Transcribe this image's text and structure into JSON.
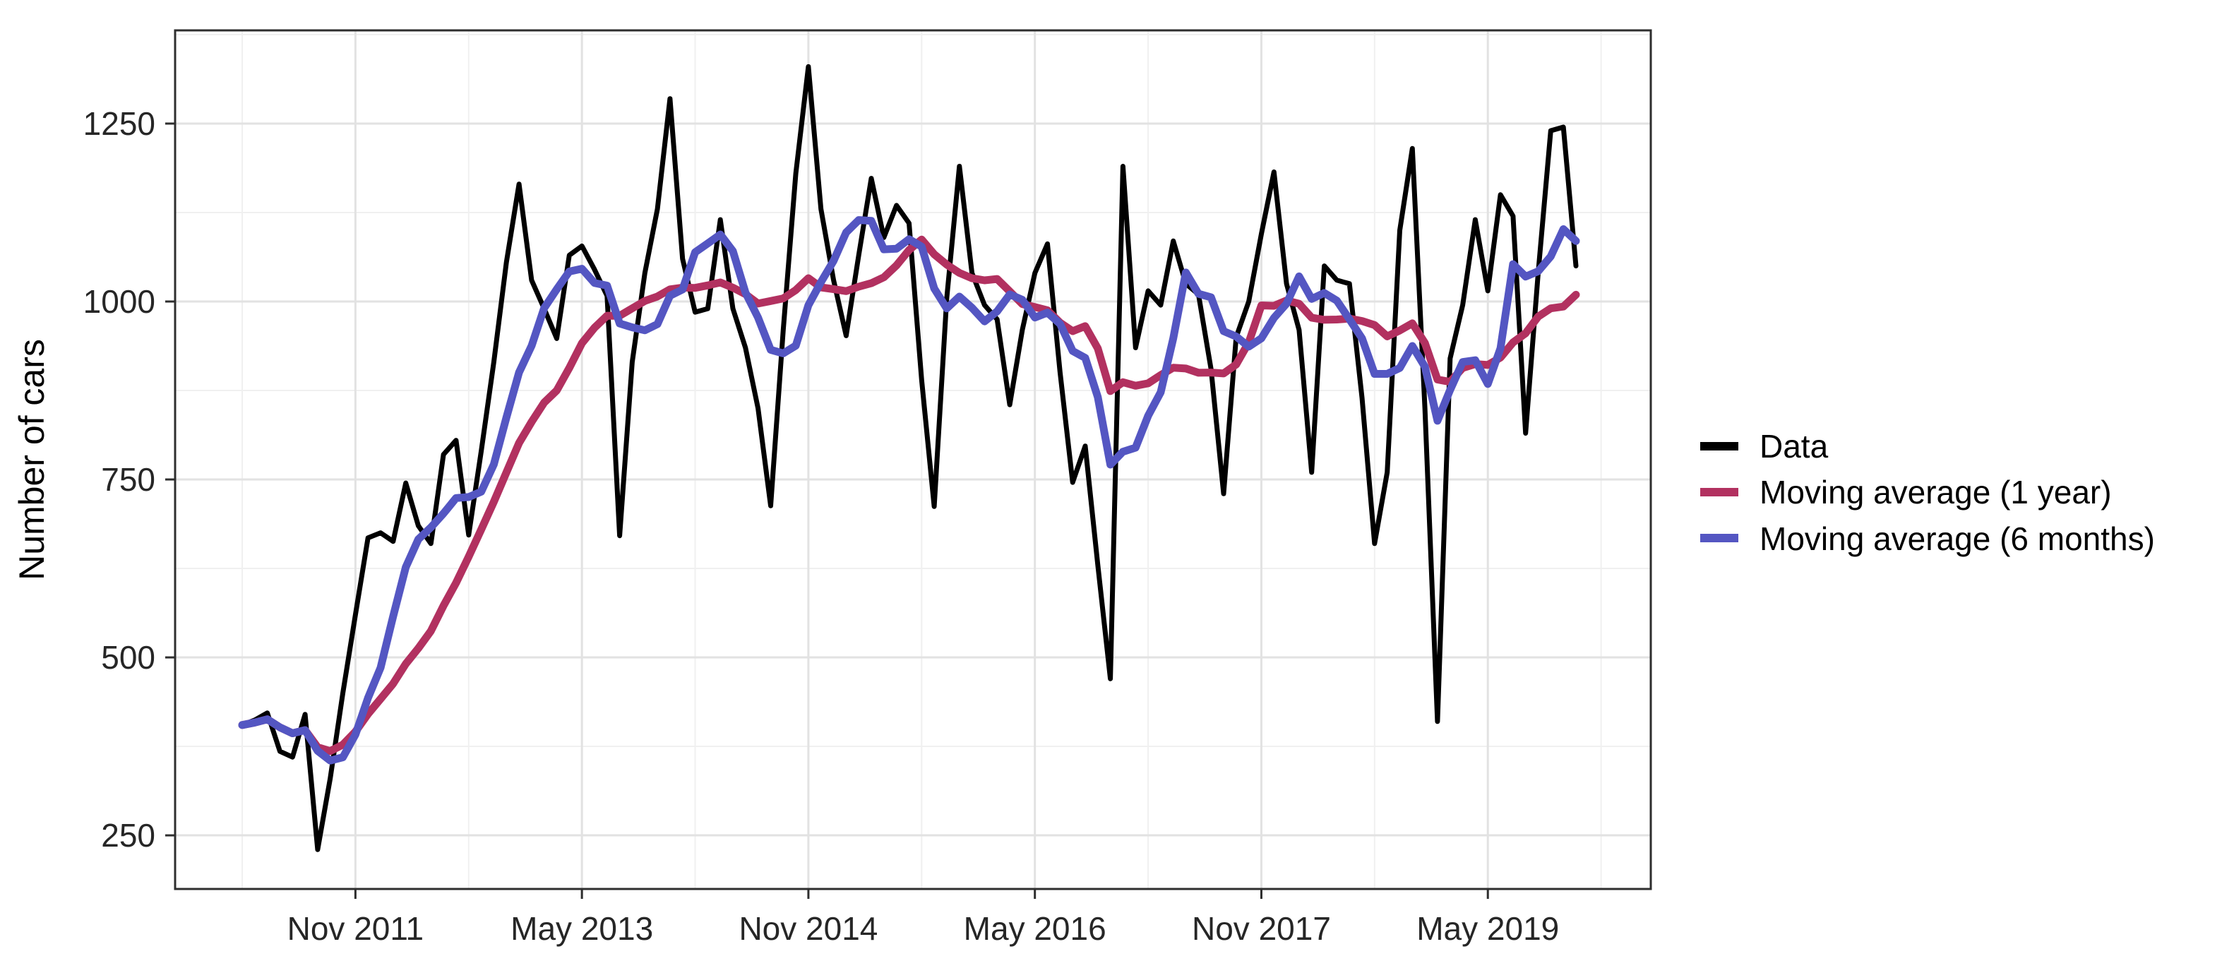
{
  "chart_data": {
    "type": "line",
    "title": "",
    "xlabel": "",
    "ylabel": "Number of cars",
    "grid": true,
    "legend_position": "right",
    "x_unit": "month",
    "ylim": [
      175,
      1381
    ],
    "y_major_ticks": [
      250,
      500,
      750,
      1000,
      1250
    ],
    "y_minor_ticks": [
      375,
      625,
      875,
      1125,
      1375
    ],
    "x_major_ticks": [
      {
        "index": 9,
        "label": "Nov 2011"
      },
      {
        "index": 27,
        "label": "May 2013"
      },
      {
        "index": 45,
        "label": "Nov 2014"
      },
      {
        "index": 63,
        "label": "May 2016"
      },
      {
        "index": 81,
        "label": "Nov 2017"
      },
      {
        "index": 99,
        "label": "May 2019"
      }
    ],
    "x_minor_tick_indices": [
      0,
      18,
      36,
      54,
      72,
      90,
      108
    ],
    "x": [
      "2011-02",
      "2011-03",
      "2011-04",
      "2011-05",
      "2011-06",
      "2011-07",
      "2011-08",
      "2011-09",
      "2011-10",
      "2011-11",
      "2011-12",
      "2012-01",
      "2012-02",
      "2012-03",
      "2012-04",
      "2012-05",
      "2012-06",
      "2012-07",
      "2012-08",
      "2012-09",
      "2012-10",
      "2012-11",
      "2012-12",
      "2013-01",
      "2013-02",
      "2013-03",
      "2013-04",
      "2013-05",
      "2013-06",
      "2013-07",
      "2013-08",
      "2013-09",
      "2013-10",
      "2013-11",
      "2013-12",
      "2014-01",
      "2014-02",
      "2014-03",
      "2014-04",
      "2014-05",
      "2014-06",
      "2014-07",
      "2014-08",
      "2014-09",
      "2014-10",
      "2014-11",
      "2014-12",
      "2015-01",
      "2015-02",
      "2015-03",
      "2015-04",
      "2015-05",
      "2015-06",
      "2015-07",
      "2015-08",
      "2015-09",
      "2015-10",
      "2015-11",
      "2015-12",
      "2016-01",
      "2016-02",
      "2016-03",
      "2016-04",
      "2016-05",
      "2016-06",
      "2016-07",
      "2016-08",
      "2016-09",
      "2016-10",
      "2016-11",
      "2016-12",
      "2017-01",
      "2017-02",
      "2017-03",
      "2017-04",
      "2017-05",
      "2017-06",
      "2017-07",
      "2017-08",
      "2017-09",
      "2017-10",
      "2017-11",
      "2017-12",
      "2018-01",
      "2018-02",
      "2018-03",
      "2018-04",
      "2018-05",
      "2018-06",
      "2018-07",
      "2018-08",
      "2018-09",
      "2018-10",
      "2018-11",
      "2018-12",
      "2019-01",
      "2019-02",
      "2019-03",
      "2019-04",
      "2019-05",
      "2019-06",
      "2019-07",
      "2019-08",
      "2019-09",
      "2019-10",
      "2019-11",
      "2019-12"
    ],
    "series": [
      {
        "name": "Data",
        "color": "#000000",
        "stroke_width": 7,
        "values": [
          405,
          412,
          422,
          368,
          360,
          420,
          230,
          330,
          450,
          560,
          668,
          675,
          663,
          745,
          685,
          660,
          785,
          805,
          672,
          790,
          915,
          1055,
          1165,
          1030,
          990,
          948,
          1065,
          1078,
          1045,
          1008,
          671,
          915,
          1040,
          1130,
          1285,
          1060,
          985,
          990,
          1115,
          990,
          935,
          850,
          713,
          960,
          1180,
          1330,
          1130,
          1030,
          952,
          1065,
          1173,
          1090,
          1135,
          1110,
          890,
          712,
          1005,
          1190,
          1040,
          995,
          975,
          855,
          960,
          1040,
          1081,
          901,
          746,
          797,
          630,
          470,
          1190,
          935,
          1015,
          995,
          1085,
          1025,
          1010,
          905,
          730,
          950,
          1000,
          1095,
          1182,
          1025,
          960,
          760,
          1050,
          1030,
          1025,
          865,
          660,
          760,
          1100,
          1215,
          850,
          410,
          920,
          995,
          1115,
          1015,
          1150,
          1120,
          815,
          1040,
          1240,
          1245,
          1050
        ]
      },
      {
        "name": "Moving average (1 year)",
        "color": "#B23160",
        "stroke_width": 11,
        "derived": "trailing moving average of Data (partial windows at start)",
        "window_months": 12
      },
      {
        "name": "Moving average (6 months)",
        "color": "#5456C2",
        "stroke_width": 11,
        "derived": "trailing moving average of Data (partial windows at start)",
        "window_months": 6
      }
    ],
    "style": {
      "panel_background": "#ffffff",
      "panel_border": "#2e2e2e",
      "grid_major_color": "#e2e2e2",
      "grid_minor_color": "#f0f0f0",
      "tick_label_color": "#262626"
    }
  },
  "legend": {
    "items": [
      {
        "label": "Data"
      },
      {
        "label": "Moving average (1 year)"
      },
      {
        "label": "Moving average (6 months)"
      }
    ]
  }
}
